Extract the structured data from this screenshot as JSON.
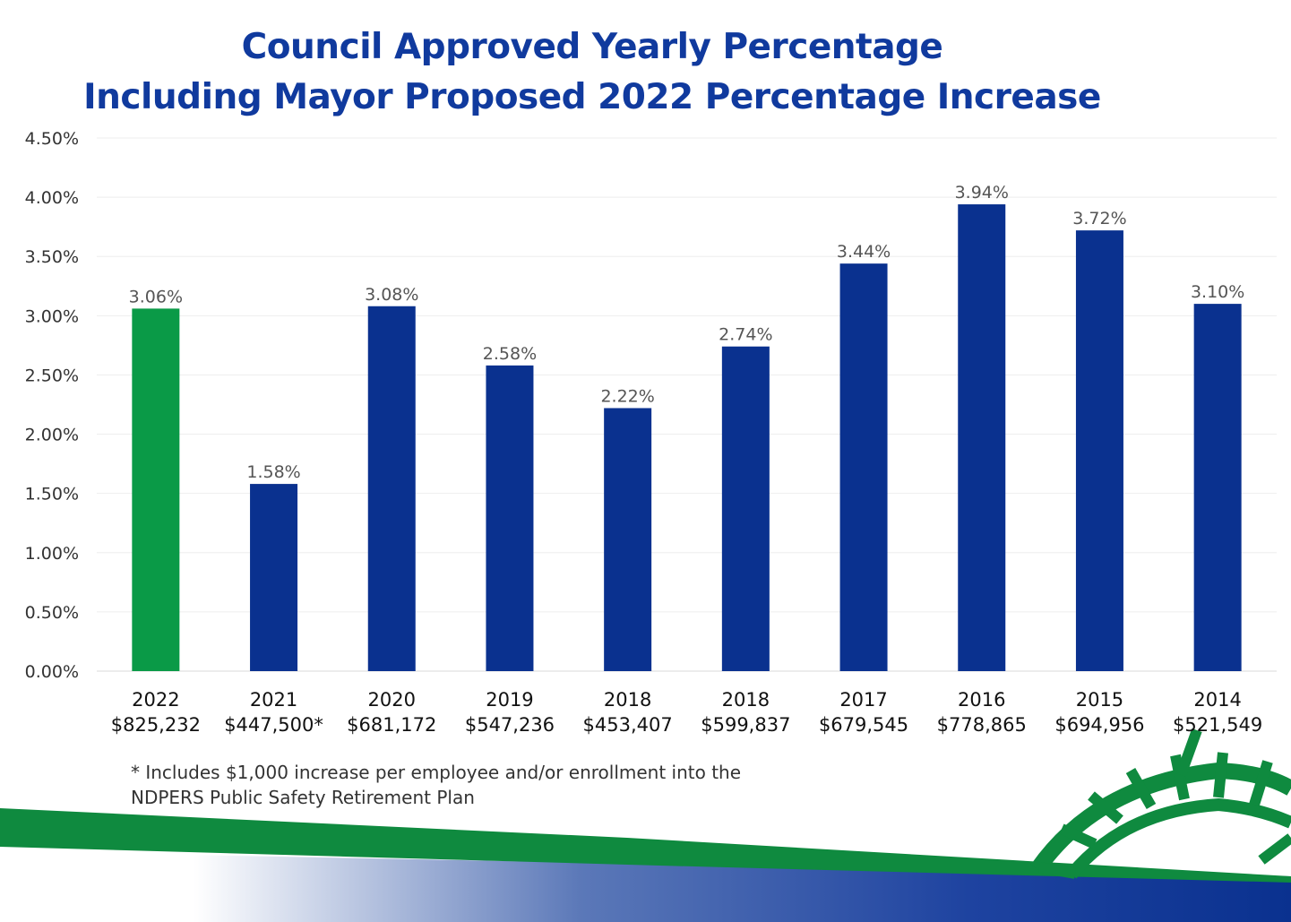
{
  "title_line1": "Council Approved Yearly Percentage",
  "title_line2": "Including Mayor Proposed 2022 Percentage Increase",
  "footnote_line1": "* Includes $1,000 increase per employee and/or enrollment into the",
  "footnote_line2": "NDPERS Public Safety Retirement Plan",
  "colors": {
    "title": "#103a9e",
    "bar": "#0a318f",
    "highlight": "#0a9a47",
    "accent_green": "#0f8a3f"
  },
  "chart_data": {
    "type": "bar",
    "title": "Council Approved Yearly Percentage Including Mayor Proposed 2022 Percentage Increase",
    "xlabel": "",
    "ylabel": "",
    "ylim": [
      0,
      4.5
    ],
    "y_tick_step": 0.5,
    "y_tick_labels": [
      "0.00%",
      "0.50%",
      "1.00%",
      "1.50%",
      "2.00%",
      "2.50%",
      "3.00%",
      "3.50%",
      "4.00%",
      "4.50%"
    ],
    "grid": true,
    "categories": [
      {
        "year": "2022",
        "amount": "$825,232"
      },
      {
        "year": "2021",
        "amount": "$447,500*"
      },
      {
        "year": "2020",
        "amount": "$681,172"
      },
      {
        "year": "2019",
        "amount": "$547,236"
      },
      {
        "year": "2018",
        "amount": "$453,407"
      },
      {
        "year": "2018",
        "amount": "$599,837"
      },
      {
        "year": "2017",
        "amount": "$679,545"
      },
      {
        "year": "2016",
        "amount": "$778,865"
      },
      {
        "year": "2015",
        "amount": "$694,956"
      },
      {
        "year": "2014",
        "amount": "$521,549"
      }
    ],
    "values": [
      3.06,
      1.58,
      3.08,
      2.58,
      2.22,
      2.74,
      3.44,
      3.94,
      3.72,
      3.1
    ],
    "data_labels": [
      "3.06%",
      "1.58%",
      "3.08%",
      "2.58%",
      "2.22%",
      "2.74%",
      "3.44%",
      "3.94%",
      "3.72%",
      "3.10%"
    ],
    "highlight_index": 0
  }
}
